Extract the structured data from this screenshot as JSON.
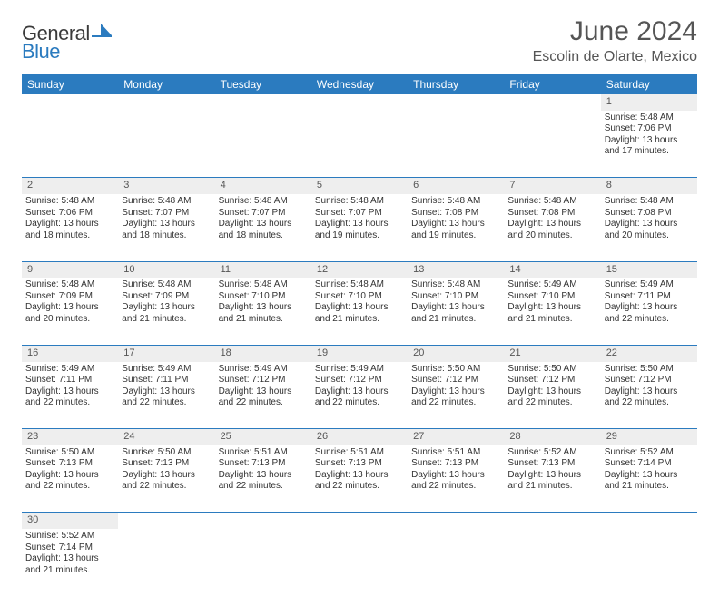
{
  "logo": {
    "part1": "General",
    "part2": "Blue"
  },
  "title": "June 2024",
  "location": "Escolin de Olarte, Mexico",
  "colors": {
    "header_bg": "#2b7bbf",
    "header_fg": "#ffffff",
    "daynum_bg": "#eeeeee",
    "text": "#333333",
    "logo_gray": "#505050",
    "logo_blue": "#2b7bbf"
  },
  "weekdays": [
    "Sunday",
    "Monday",
    "Tuesday",
    "Wednesday",
    "Thursday",
    "Friday",
    "Saturday"
  ],
  "weeks": [
    {
      "nums": [
        "",
        "",
        "",
        "",
        "",
        "",
        "1"
      ],
      "cells": [
        null,
        null,
        null,
        null,
        null,
        null,
        {
          "sunrise": "Sunrise: 5:48 AM",
          "sunset": "Sunset: 7:06 PM",
          "d1": "Daylight: 13 hours",
          "d2": "and 17 minutes."
        }
      ]
    },
    {
      "nums": [
        "2",
        "3",
        "4",
        "5",
        "6",
        "7",
        "8"
      ],
      "cells": [
        {
          "sunrise": "Sunrise: 5:48 AM",
          "sunset": "Sunset: 7:06 PM",
          "d1": "Daylight: 13 hours",
          "d2": "and 18 minutes."
        },
        {
          "sunrise": "Sunrise: 5:48 AM",
          "sunset": "Sunset: 7:07 PM",
          "d1": "Daylight: 13 hours",
          "d2": "and 18 minutes."
        },
        {
          "sunrise": "Sunrise: 5:48 AM",
          "sunset": "Sunset: 7:07 PM",
          "d1": "Daylight: 13 hours",
          "d2": "and 18 minutes."
        },
        {
          "sunrise": "Sunrise: 5:48 AM",
          "sunset": "Sunset: 7:07 PM",
          "d1": "Daylight: 13 hours",
          "d2": "and 19 minutes."
        },
        {
          "sunrise": "Sunrise: 5:48 AM",
          "sunset": "Sunset: 7:08 PM",
          "d1": "Daylight: 13 hours",
          "d2": "and 19 minutes."
        },
        {
          "sunrise": "Sunrise: 5:48 AM",
          "sunset": "Sunset: 7:08 PM",
          "d1": "Daylight: 13 hours",
          "d2": "and 20 minutes."
        },
        {
          "sunrise": "Sunrise: 5:48 AM",
          "sunset": "Sunset: 7:08 PM",
          "d1": "Daylight: 13 hours",
          "d2": "and 20 minutes."
        }
      ]
    },
    {
      "nums": [
        "9",
        "10",
        "11",
        "12",
        "13",
        "14",
        "15"
      ],
      "cells": [
        {
          "sunrise": "Sunrise: 5:48 AM",
          "sunset": "Sunset: 7:09 PM",
          "d1": "Daylight: 13 hours",
          "d2": "and 20 minutes."
        },
        {
          "sunrise": "Sunrise: 5:48 AM",
          "sunset": "Sunset: 7:09 PM",
          "d1": "Daylight: 13 hours",
          "d2": "and 21 minutes."
        },
        {
          "sunrise": "Sunrise: 5:48 AM",
          "sunset": "Sunset: 7:10 PM",
          "d1": "Daylight: 13 hours",
          "d2": "and 21 minutes."
        },
        {
          "sunrise": "Sunrise: 5:48 AM",
          "sunset": "Sunset: 7:10 PM",
          "d1": "Daylight: 13 hours",
          "d2": "and 21 minutes."
        },
        {
          "sunrise": "Sunrise: 5:48 AM",
          "sunset": "Sunset: 7:10 PM",
          "d1": "Daylight: 13 hours",
          "d2": "and 21 minutes."
        },
        {
          "sunrise": "Sunrise: 5:49 AM",
          "sunset": "Sunset: 7:10 PM",
          "d1": "Daylight: 13 hours",
          "d2": "and 21 minutes."
        },
        {
          "sunrise": "Sunrise: 5:49 AM",
          "sunset": "Sunset: 7:11 PM",
          "d1": "Daylight: 13 hours",
          "d2": "and 22 minutes."
        }
      ]
    },
    {
      "nums": [
        "16",
        "17",
        "18",
        "19",
        "20",
        "21",
        "22"
      ],
      "cells": [
        {
          "sunrise": "Sunrise: 5:49 AM",
          "sunset": "Sunset: 7:11 PM",
          "d1": "Daylight: 13 hours",
          "d2": "and 22 minutes."
        },
        {
          "sunrise": "Sunrise: 5:49 AM",
          "sunset": "Sunset: 7:11 PM",
          "d1": "Daylight: 13 hours",
          "d2": "and 22 minutes."
        },
        {
          "sunrise": "Sunrise: 5:49 AM",
          "sunset": "Sunset: 7:12 PM",
          "d1": "Daylight: 13 hours",
          "d2": "and 22 minutes."
        },
        {
          "sunrise": "Sunrise: 5:49 AM",
          "sunset": "Sunset: 7:12 PM",
          "d1": "Daylight: 13 hours",
          "d2": "and 22 minutes."
        },
        {
          "sunrise": "Sunrise: 5:50 AM",
          "sunset": "Sunset: 7:12 PM",
          "d1": "Daylight: 13 hours",
          "d2": "and 22 minutes."
        },
        {
          "sunrise": "Sunrise: 5:50 AM",
          "sunset": "Sunset: 7:12 PM",
          "d1": "Daylight: 13 hours",
          "d2": "and 22 minutes."
        },
        {
          "sunrise": "Sunrise: 5:50 AM",
          "sunset": "Sunset: 7:12 PM",
          "d1": "Daylight: 13 hours",
          "d2": "and 22 minutes."
        }
      ]
    },
    {
      "nums": [
        "23",
        "24",
        "25",
        "26",
        "27",
        "28",
        "29"
      ],
      "cells": [
        {
          "sunrise": "Sunrise: 5:50 AM",
          "sunset": "Sunset: 7:13 PM",
          "d1": "Daylight: 13 hours",
          "d2": "and 22 minutes."
        },
        {
          "sunrise": "Sunrise: 5:50 AM",
          "sunset": "Sunset: 7:13 PM",
          "d1": "Daylight: 13 hours",
          "d2": "and 22 minutes."
        },
        {
          "sunrise": "Sunrise: 5:51 AM",
          "sunset": "Sunset: 7:13 PM",
          "d1": "Daylight: 13 hours",
          "d2": "and 22 minutes."
        },
        {
          "sunrise": "Sunrise: 5:51 AM",
          "sunset": "Sunset: 7:13 PM",
          "d1": "Daylight: 13 hours",
          "d2": "and 22 minutes."
        },
        {
          "sunrise": "Sunrise: 5:51 AM",
          "sunset": "Sunset: 7:13 PM",
          "d1": "Daylight: 13 hours",
          "d2": "and 22 minutes."
        },
        {
          "sunrise": "Sunrise: 5:52 AM",
          "sunset": "Sunset: 7:13 PM",
          "d1": "Daylight: 13 hours",
          "d2": "and 21 minutes."
        },
        {
          "sunrise": "Sunrise: 5:52 AM",
          "sunset": "Sunset: 7:14 PM",
          "d1": "Daylight: 13 hours",
          "d2": "and 21 minutes."
        }
      ]
    },
    {
      "nums": [
        "30",
        "",
        "",
        "",
        "",
        "",
        ""
      ],
      "cells": [
        {
          "sunrise": "Sunrise: 5:52 AM",
          "sunset": "Sunset: 7:14 PM",
          "d1": "Daylight: 13 hours",
          "d2": "and 21 minutes."
        },
        null,
        null,
        null,
        null,
        null,
        null
      ]
    }
  ]
}
